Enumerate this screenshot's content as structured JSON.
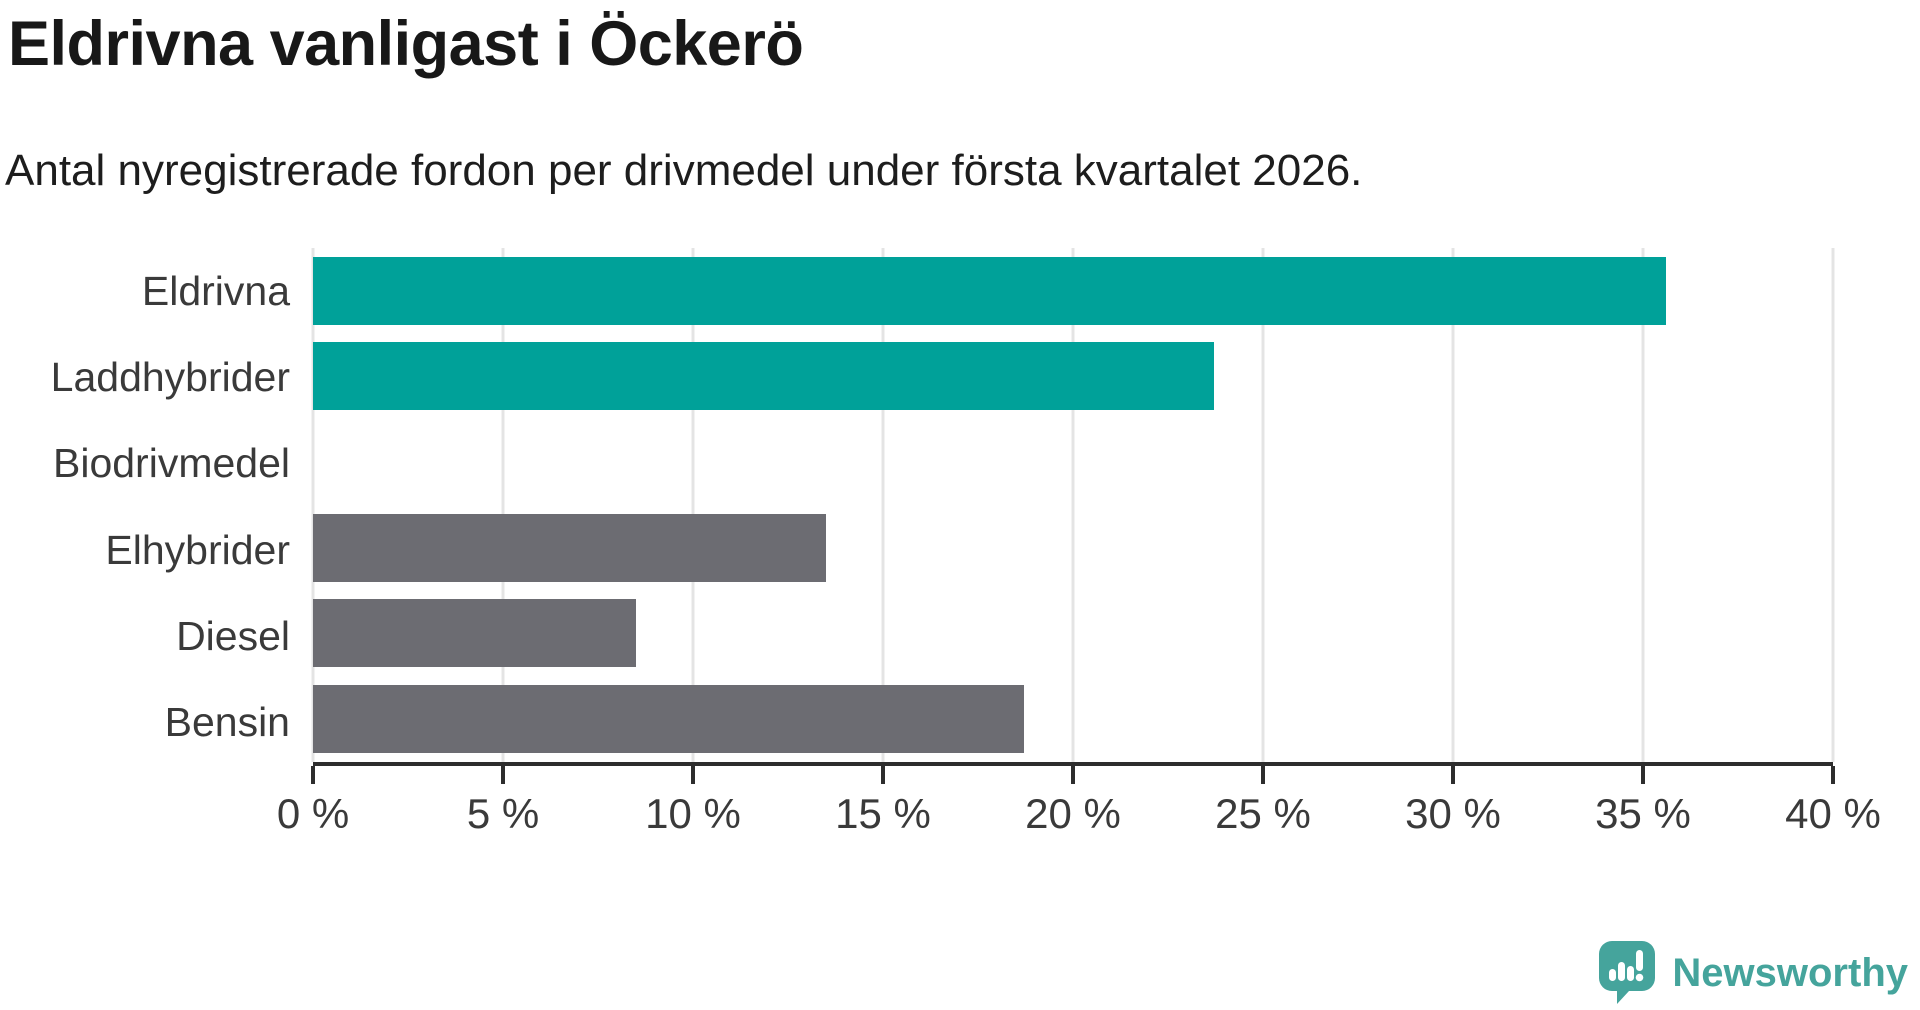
{
  "header": {
    "title": "Eldrivna vanligast i Öckerö",
    "subtitle": "Antal nyregistrerade fordon per drivmedel under första kvartalet 2026."
  },
  "chart_data": {
    "type": "bar",
    "orientation": "horizontal",
    "title": "Eldrivna vanligast i Öckerö",
    "subtitle": "Antal nyregistrerade fordon per drivmedel under första kvartalet 2026.",
    "categories": [
      "Eldrivna",
      "Laddhybrider",
      "Biodrivmedel",
      "Elhybrider",
      "Diesel",
      "Bensin"
    ],
    "values": [
      35.6,
      23.7,
      0,
      13.5,
      8.5,
      18.7
    ],
    "bar_colors": [
      "#00a199",
      "#00a199",
      "#6c6c72",
      "#6c6c72",
      "#6c6c72",
      "#6c6c72"
    ],
    "highlight_color": "#00a199",
    "default_color": "#6c6c72",
    "unit": "%",
    "xlabel": "",
    "ylabel": "",
    "xlim": [
      0,
      40
    ],
    "xticks": [
      0,
      5,
      10,
      15,
      20,
      25,
      30,
      35,
      40
    ],
    "xtick_suffix": " %",
    "grid": "vertical",
    "legend": "none"
  },
  "footer": {
    "brand": "Newsworthy",
    "logo_color": "#45a49c",
    "logo_icon": "speech-bubble-bar-chart-exclamation"
  }
}
